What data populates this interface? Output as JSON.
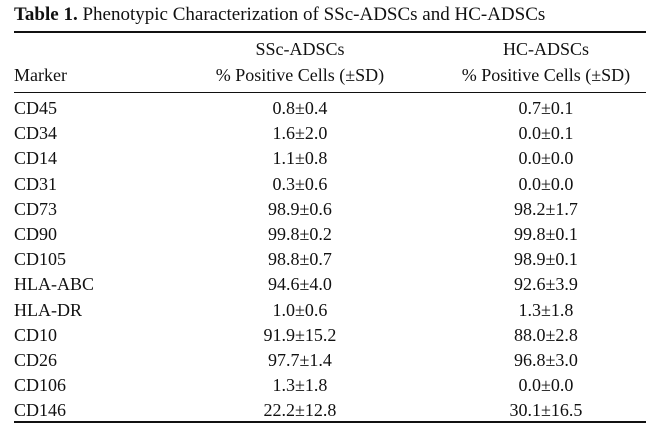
{
  "caption": {
    "label": "Table 1.",
    "title": "Phenotypic Characterization of SSc-ADSCs and HC-ADSCs"
  },
  "header": {
    "marker": "Marker",
    "ssc_line1": "SSc-ADSCs",
    "ssc_line2": "% Positive Cells (±SD)",
    "hc_line1": "HC-ADSCs",
    "hc_line2": "% Positive Cells (±SD)"
  },
  "rows": [
    {
      "marker": "CD45",
      "ssc": "0.8±0.4",
      "hc": "0.7±0.1"
    },
    {
      "marker": "CD34",
      "ssc": "1.6±2.0",
      "hc": "0.0±0.1"
    },
    {
      "marker": "CD14",
      "ssc": "1.1±0.8",
      "hc": "0.0±0.0"
    },
    {
      "marker": "CD31",
      "ssc": "0.3±0.6",
      "hc": "0.0±0.0"
    },
    {
      "marker": "CD73",
      "ssc": "98.9±0.6",
      "hc": "98.2±1.7"
    },
    {
      "marker": "CD90",
      "ssc": "99.8±0.2",
      "hc": "99.8±0.1"
    },
    {
      "marker": "CD105",
      "ssc": "98.8±0.7",
      "hc": "98.9±0.1"
    },
    {
      "marker": "HLA-ABC",
      "ssc": "94.6±4.0",
      "hc": "92.6±3.9"
    },
    {
      "marker": "HLA-DR",
      "ssc": "1.0±0.6",
      "hc": "1.3±1.8"
    },
    {
      "marker": "CD10",
      "ssc": "91.9±15.2",
      "hc": "88.0±2.8"
    },
    {
      "marker": "CD26",
      "ssc": "97.7±1.4",
      "hc": "96.8±3.0"
    },
    {
      "marker": "CD106",
      "ssc": "1.3±1.8",
      "hc": "0.0±0.0"
    },
    {
      "marker": "CD146",
      "ssc": "22.2±12.8",
      "hc": "30.1±16.5"
    }
  ]
}
